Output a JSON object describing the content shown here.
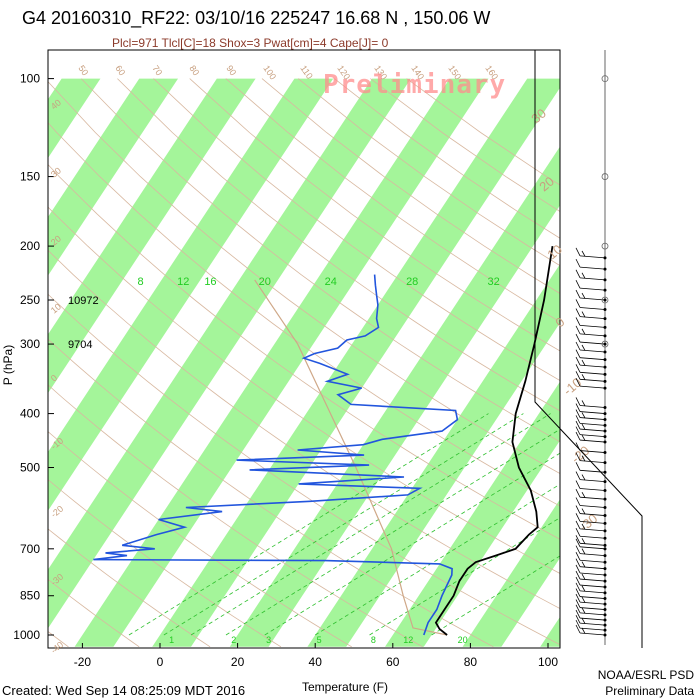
{
  "title": "G4 20160310_RF22: 03/10/16 225247  16.68 N , 150.06 W",
  "subtitle": "Plcl=971 Tlcl[C]=18 Shox=3 Pwat[cm]=4 Cape[J]= 0",
  "watermark": "Preliminary",
  "created": "Created: Wed Sep 14 08:25:09 MDT 2016",
  "credit_line1": "NOAA/ESRL PSD",
  "credit_line2": "Preliminary Data",
  "colors": {
    "band": "#a4f59a",
    "temperature": "#000000",
    "dewpoint": "#2255dd",
    "dry_adiabat": "#d8b8a0",
    "moist_adiabat": "#30c030",
    "parcel": "#cfa888",
    "subtitle": "#8b3a2a",
    "labels_brown": "#c8a080",
    "labels_green": "#22cc22"
  },
  "chart_data": {
    "type": "skew-t",
    "ylabel": "P (hPa)",
    "xlabel": "Temperature (F)",
    "pressure_ticks": [
      100,
      150,
      200,
      250,
      300,
      400,
      500,
      700,
      850,
      1000
    ],
    "temperature_ticks": [
      -20,
      0,
      20,
      40,
      60,
      80,
      100
    ],
    "xlim_F": [
      -27,
      110
    ],
    "ylim_hPa": [
      100,
      1050
    ],
    "height_annotations": [
      {
        "text": "10972",
        "pressure": 250
      },
      {
        "text": "9704",
        "pressure": 300
      }
    ],
    "mixing_ratio_top_labels": [
      {
        "text": "8",
        "temp_F": -5
      },
      {
        "text": "12",
        "temp_F": 6
      },
      {
        "text": "16",
        "temp_F": 13
      },
      {
        "text": "20",
        "temp_F": 27
      },
      {
        "text": "24",
        "temp_F": 44
      },
      {
        "text": "28",
        "temp_F": 65
      },
      {
        "text": "32",
        "temp_F": 86
      }
    ],
    "mixing_ratio_bottom_labels": [
      {
        "text": "1",
        "temp_F": 3
      },
      {
        "text": "2",
        "temp_F": 19
      },
      {
        "text": "3",
        "temp_F": 28
      },
      {
        "text": "5",
        "temp_F": 41
      },
      {
        "text": "8",
        "temp_F": 55
      },
      {
        "text": "12",
        "temp_F": 64
      },
      {
        "text": "20",
        "temp_F": 78
      }
    ],
    "theta_top_labels": [
      "50",
      "60",
      "70",
      "80",
      "90",
      "100",
      "110",
      "120",
      "130",
      "140",
      "150",
      "160"
    ],
    "theta_left_labels": [
      "40",
      "30",
      "20",
      "10",
      "0",
      "-10",
      "-20",
      "-30",
      "-40"
    ],
    "skewed_isotherm_labels_right": [
      "30",
      "20",
      "10",
      "0",
      "-10",
      "-20",
      "-30"
    ],
    "temperature_profile": [
      {
        "p": 1000,
        "t": 74
      },
      {
        "p": 975,
        "t": 71
      },
      {
        "p": 950,
        "t": 69
      },
      {
        "p": 900,
        "t": 69
      },
      {
        "p": 850,
        "t": 69
      },
      {
        "p": 800,
        "t": 68
      },
      {
        "p": 760,
        "t": 68
      },
      {
        "p": 740,
        "t": 69
      },
      {
        "p": 720,
        "t": 73
      },
      {
        "p": 700,
        "t": 77
      },
      {
        "p": 660,
        "t": 78
      },
      {
        "p": 640,
        "t": 79
      },
      {
        "p": 600,
        "t": 76
      },
      {
        "p": 550,
        "t": 71
      },
      {
        "p": 500,
        "t": 64
      },
      {
        "p": 450,
        "t": 58
      },
      {
        "p": 400,
        "t": 54
      },
      {
        "p": 350,
        "t": 51
      },
      {
        "p": 300,
        "t": 47
      },
      {
        "p": 250,
        "t": 42
      },
      {
        "p": 220,
        "t": 38
      },
      {
        "p": 200,
        "t": 35
      }
    ],
    "dewpoint_profile": [
      {
        "p": 1000,
        "t": 68
      },
      {
        "p": 950,
        "t": 67
      },
      {
        "p": 900,
        "t": 67
      },
      {
        "p": 850,
        "t": 66
      },
      {
        "p": 780,
        "t": 65
      },
      {
        "p": 760,
        "t": 64
      },
      {
        "p": 745,
        "t": 60
      },
      {
        "p": 735,
        "t": 30
      },
      {
        "p": 732,
        "t": -30
      },
      {
        "p": 720,
        "t": -22
      },
      {
        "p": 712,
        "t": -28
      },
      {
        "p": 700,
        "t": -16
      },
      {
        "p": 690,
        "t": -25
      },
      {
        "p": 660,
        "t": -18
      },
      {
        "p": 640,
        "t": -12
      },
      {
        "p": 620,
        "t": -20
      },
      {
        "p": 600,
        "t": -5
      },
      {
        "p": 590,
        "t": -15
      },
      {
        "p": 575,
        "t": 16
      },
      {
        "p": 560,
        "t": 40
      },
      {
        "p": 545,
        "t": 42
      },
      {
        "p": 535,
        "t": 10
      },
      {
        "p": 520,
        "t": 36
      },
      {
        "p": 505,
        "t": -5
      },
      {
        "p": 495,
        "t": 25
      },
      {
        "p": 485,
        "t": -10
      },
      {
        "p": 475,
        "t": 22
      },
      {
        "p": 465,
        "t": 4
      },
      {
        "p": 455,
        "t": 20
      },
      {
        "p": 445,
        "t": 24
      },
      {
        "p": 430,
        "t": 38
      },
      {
        "p": 410,
        "t": 40
      },
      {
        "p": 395,
        "t": 38
      },
      {
        "p": 385,
        "t": 10
      },
      {
        "p": 370,
        "t": 5
      },
      {
        "p": 360,
        "t": 10
      },
      {
        "p": 350,
        "t": 0
      },
      {
        "p": 340,
        "t": 4
      },
      {
        "p": 325,
        "t": -5
      },
      {
        "p": 318,
        "t": -10
      },
      {
        "p": 312,
        "t": -8
      },
      {
        "p": 305,
        "t": -3
      },
      {
        "p": 295,
        "t": -2
      },
      {
        "p": 290,
        "t": 2
      },
      {
        "p": 280,
        "t": 4
      },
      {
        "p": 270,
        "t": 2
      },
      {
        "p": 255,
        "t": 0
      },
      {
        "p": 245,
        "t": -2
      },
      {
        "p": 235,
        "t": -4
      },
      {
        "p": 225,
        "t": -6
      }
    ],
    "parcel_path": [
      {
        "p": 1000,
        "t": 74
      },
      {
        "p": 971,
        "t": 64
      },
      {
        "p": 850,
        "t": 56
      },
      {
        "p": 700,
        "t": 45
      },
      {
        "p": 500,
        "t": 22
      },
      {
        "p": 300,
        "t": -14
      },
      {
        "p": 230,
        "t": -36
      }
    ],
    "wind_barb_pressures": [
      210,
      220,
      230,
      240,
      250,
      260,
      270,
      280,
      290,
      300,
      310,
      320,
      330,
      340,
      350,
      360,
      390,
      400,
      410,
      420,
      430,
      440,
      450,
      470,
      490,
      510,
      530,
      550,
      570,
      590,
      610,
      630,
      650,
      670,
      690,
      700,
      720,
      740,
      760,
      780,
      800,
      820,
      840,
      860,
      880,
      900,
      920,
      940,
      960,
      980,
      1000
    ]
  }
}
